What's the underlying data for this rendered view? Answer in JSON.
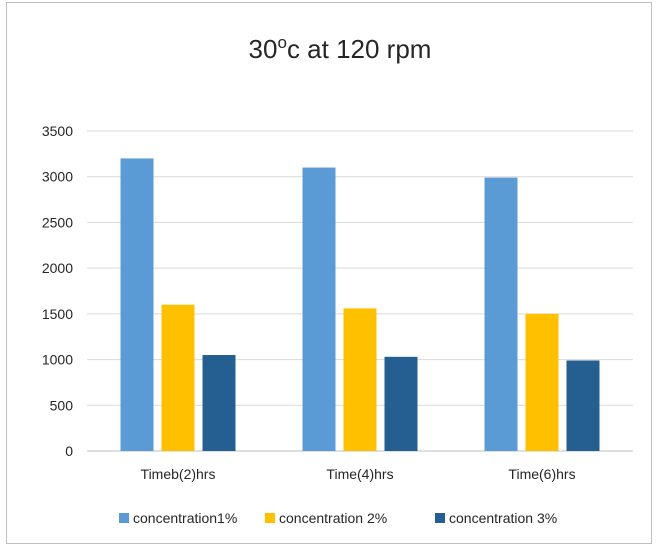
{
  "chart_data": {
    "type": "bar",
    "title": "30°c at 120 rpm",
    "title_parts": {
      "base": "30",
      "sup": "o",
      "rest": "c at 120 rpm"
    },
    "xlabel": "",
    "ylabel": "",
    "categories": [
      "Timeb(2)hrs",
      "Time(4)hrs",
      "Time(6)hrs"
    ],
    "series": [
      {
        "name": "concentration1%",
        "values": [
          3200,
          3100,
          2990
        ],
        "color": "#5b9bd5"
      },
      {
        "name": "concentration 2%",
        "values": [
          1600,
          1560,
          1500
        ],
        "color": "#ffc000"
      },
      {
        "name": "concentration 3%",
        "values": [
          1050,
          1030,
          990
        ],
        "color": "#255e91"
      }
    ],
    "ylim": [
      0,
      3500
    ],
    "yticks": [
      0,
      500,
      1000,
      1500,
      2000,
      2500,
      3000,
      3500
    ],
    "grid": true,
    "legend": "bottom"
  }
}
